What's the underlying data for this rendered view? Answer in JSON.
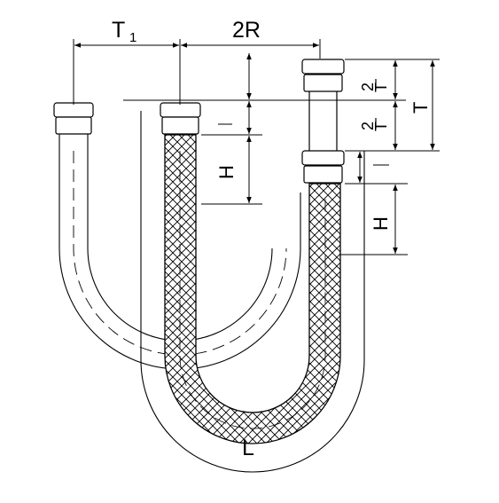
{
  "labels": {
    "t1": "T",
    "t1_sub": "1",
    "two_r": "2R",
    "t": "T",
    "t_half_top": "T",
    "t_half_bottom": "T",
    "two": "2",
    "l_left": "l",
    "l_right": "l",
    "h_left": "H",
    "h_right": "H",
    "length": "L"
  },
  "colors": {
    "stroke": "#000000",
    "background": "#ffffff"
  }
}
